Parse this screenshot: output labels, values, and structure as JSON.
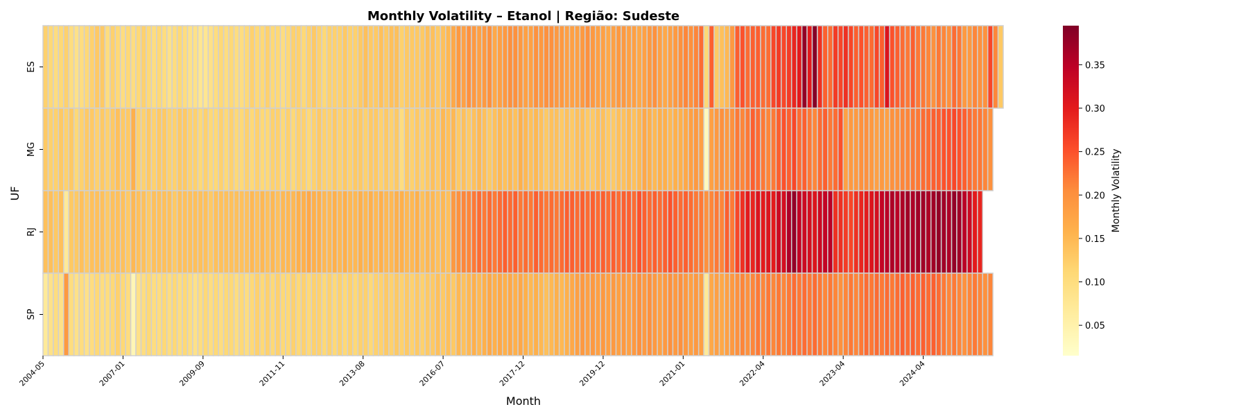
{
  "chart_data": {
    "type": "heatmap",
    "title": "Monthly Volatility – Etanol | Região: Sudeste",
    "xlabel": "Month",
    "ylabel": "UF",
    "rows": [
      "ES",
      "MG",
      "RJ",
      "SP"
    ],
    "x_tick_labels": [
      "2004-05",
      "2007-01",
      "2009-09",
      "2011-11",
      "2013-08",
      "2016-07",
      "2017-12",
      "2019-12",
      "2021-01",
      "2022-04",
      "2023-04",
      "2024-04"
    ],
    "colorbar": {
      "label": "Monthly Volatility",
      "ticks": [
        "0.05",
        "0.10",
        "0.15",
        "0.20",
        "0.25",
        "0.30",
        "0.35"
      ],
      "tick_values": [
        0.05,
        0.1,
        0.15,
        0.2,
        0.25,
        0.3,
        0.35
      ],
      "min": 0.015,
      "max": 0.395,
      "colormap": "YlOrRd"
    },
    "series": [
      {
        "name": "ES",
        "values": [
          0.12,
          0.11,
          0.1,
          0.11,
          0.12,
          0.1,
          0.09,
          0.1,
          0.11,
          0.12,
          0.13,
          0.13,
          0.1,
          0.12,
          0.11,
          0.1,
          0.11,
          0.1,
          0.11,
          0.12,
          0.11,
          0.1,
          0.11,
          0.1,
          0.09,
          0.1,
          0.11,
          0.1,
          0.09,
          0.09,
          0.08,
          0.08,
          0.09,
          0.1,
          0.11,
          0.1,
          0.11,
          0.1,
          0.1,
          0.11,
          0.12,
          0.11,
          0.11,
          0.12,
          0.11,
          0.11,
          0.1,
          0.11,
          0.12,
          0.12,
          0.11,
          0.12,
          0.13,
          0.12,
          0.11,
          0.12,
          0.12,
          0.12,
          0.13,
          0.12,
          0.12,
          0.13,
          0.14,
          0.13,
          0.13,
          0.14,
          0.13,
          0.14,
          0.14,
          0.12,
          0.13,
          0.13,
          0.13,
          0.13,
          0.14,
          0.14,
          0.13,
          0.14,
          0.15,
          0.17,
          0.19,
          0.18,
          0.2,
          0.19,
          0.18,
          0.19,
          0.2,
          0.17,
          0.18,
          0.19,
          0.2,
          0.2,
          0.19,
          0.18,
          0.18,
          0.2,
          0.19,
          0.2,
          0.2,
          0.19,
          0.19,
          0.18,
          0.18,
          0.18,
          0.19,
          0.2,
          0.19,
          0.18,
          0.18,
          0.17,
          0.18,
          0.19,
          0.19,
          0.18,
          0.18,
          0.17,
          0.18,
          0.19,
          0.2,
          0.18,
          0.17,
          0.18,
          0.19,
          0.2,
          0.21,
          0.2,
          0.21,
          0.23,
          0.11,
          0.24,
          0.13,
          0.14,
          0.15,
          0.19,
          0.24,
          0.25,
          0.23,
          0.24,
          0.24,
          0.23,
          0.23,
          0.26,
          0.27,
          0.26,
          0.27,
          0.29,
          0.3,
          0.38,
          0.3,
          0.39,
          0.28,
          0.24,
          0.23,
          0.27,
          0.26,
          0.28,
          0.26,
          0.24,
          0.25,
          0.24,
          0.23,
          0.26,
          0.24,
          0.31,
          0.25,
          0.24,
          0.23,
          0.22,
          0.24,
          0.22,
          0.22,
          0.21,
          0.2,
          0.22,
          0.21,
          0.2,
          0.23,
          0.22,
          0.19,
          0.19,
          0.21,
          0.2,
          0.2,
          0.26,
          0.21,
          0.13
        ]
      },
      {
        "name": "MG",
        "values": [
          0.13,
          0.12,
          0.12,
          0.13,
          0.12,
          0.13,
          0.11,
          0.12,
          0.13,
          0.13,
          0.12,
          0.13,
          0.12,
          0.13,
          0.14,
          0.13,
          0.13,
          0.16,
          0.12,
          0.12,
          0.13,
          0.12,
          0.13,
          0.13,
          0.12,
          0.12,
          0.13,
          0.13,
          0.12,
          0.12,
          0.11,
          0.12,
          0.11,
          0.11,
          0.12,
          0.11,
          0.12,
          0.11,
          0.11,
          0.12,
          0.11,
          0.12,
          0.11,
          0.11,
          0.12,
          0.12,
          0.11,
          0.12,
          0.11,
          0.12,
          0.12,
          0.11,
          0.12,
          0.13,
          0.12,
          0.12,
          0.13,
          0.12,
          0.13,
          0.12,
          0.13,
          0.13,
          0.12,
          0.13,
          0.13,
          0.12,
          0.13,
          0.12,
          0.13,
          0.1,
          0.13,
          0.12,
          0.13,
          0.12,
          0.13,
          0.14,
          0.13,
          0.15,
          0.14,
          0.15,
          0.13,
          0.14,
          0.13,
          0.14,
          0.15,
          0.14,
          0.13,
          0.14,
          0.15,
          0.14,
          0.15,
          0.14,
          0.16,
          0.15,
          0.14,
          0.15,
          0.14,
          0.13,
          0.14,
          0.14,
          0.13,
          0.14,
          0.13,
          0.14,
          0.14,
          0.13,
          0.13,
          0.14,
          0.14,
          0.13,
          0.13,
          0.14,
          0.14,
          0.15,
          0.14,
          0.15,
          0.17,
          0.16,
          0.15,
          0.16,
          0.16,
          0.15,
          0.16,
          0.16,
          0.17,
          0.18,
          0.19,
          0.18,
          0.03,
          0.18,
          0.19,
          0.2,
          0.19,
          0.2,
          0.22,
          0.21,
          0.22,
          0.24,
          0.23,
          0.22,
          0.21,
          0.22,
          0.24,
          0.25,
          0.24,
          0.26,
          0.23,
          0.24,
          0.22,
          0.21,
          0.23,
          0.24,
          0.22,
          0.23,
          0.25,
          0.18,
          0.19,
          0.19,
          0.2,
          0.2,
          0.19,
          0.18,
          0.19,
          0.18,
          0.2,
          0.2,
          0.21,
          0.21,
          0.22,
          0.22,
          0.23,
          0.23,
          0.24,
          0.24,
          0.25,
          0.25,
          0.26,
          0.25,
          0.24,
          0.23,
          0.22,
          0.22,
          0.21,
          0.2
        ]
      },
      {
        "name": "RJ",
        "values": [
          0.14,
          0.14,
          0.13,
          0.14,
          0.07,
          0.13,
          0.13,
          0.14,
          0.13,
          0.14,
          0.14,
          0.14,
          0.13,
          0.14,
          0.14,
          0.14,
          0.13,
          0.15,
          0.14,
          0.14,
          0.13,
          0.14,
          0.14,
          0.14,
          0.14,
          0.13,
          0.14,
          0.14,
          0.14,
          0.14,
          0.14,
          0.14,
          0.13,
          0.14,
          0.14,
          0.14,
          0.14,
          0.14,
          0.14,
          0.14,
          0.15,
          0.14,
          0.15,
          0.14,
          0.15,
          0.14,
          0.15,
          0.15,
          0.15,
          0.16,
          0.16,
          0.17,
          0.16,
          0.16,
          0.15,
          0.15,
          0.16,
          0.15,
          0.16,
          0.15,
          0.15,
          0.16,
          0.15,
          0.16,
          0.15,
          0.16,
          0.15,
          0.15,
          0.16,
          0.16,
          0.15,
          0.15,
          0.16,
          0.14,
          0.15,
          0.15,
          0.14,
          0.15,
          0.14,
          0.19,
          0.2,
          0.21,
          0.21,
          0.22,
          0.23,
          0.22,
          0.23,
          0.22,
          0.23,
          0.24,
          0.23,
          0.24,
          0.22,
          0.23,
          0.22,
          0.24,
          0.23,
          0.22,
          0.23,
          0.22,
          0.23,
          0.24,
          0.24,
          0.23,
          0.24,
          0.23,
          0.24,
          0.23,
          0.24,
          0.23,
          0.24,
          0.23,
          0.24,
          0.24,
          0.23,
          0.25,
          0.24,
          0.23,
          0.24,
          0.23,
          0.24,
          0.25,
          0.24,
          0.23,
          0.24,
          0.23,
          0.22,
          0.22,
          0.2,
          0.21,
          0.22,
          0.21,
          0.24,
          0.22,
          0.26,
          0.28,
          0.3,
          0.29,
          0.31,
          0.3,
          0.31,
          0.3,
          0.33,
          0.32,
          0.36,
          0.38,
          0.34,
          0.33,
          0.32,
          0.31,
          0.33,
          0.34,
          0.35,
          0.28,
          0.28,
          0.27,
          0.26,
          0.28,
          0.29,
          0.3,
          0.31,
          0.32,
          0.34,
          0.35,
          0.36,
          0.35,
          0.36,
          0.37,
          0.36,
          0.37,
          0.37,
          0.36,
          0.37,
          0.38,
          0.37,
          0.36,
          0.38,
          0.37,
          0.35,
          0.33,
          0.3,
          0.29
        ]
      },
      {
        "name": "SP",
        "values": [
          0.07,
          0.09,
          0.1,
          0.09,
          0.19,
          0.1,
          0.09,
          0.1,
          0.09,
          0.1,
          0.11,
          0.1,
          0.1,
          0.11,
          0.12,
          0.11,
          0.1,
          0.04,
          0.09,
          0.1,
          0.11,
          0.1,
          0.1,
          0.11,
          0.1,
          0.11,
          0.1,
          0.11,
          0.1,
          0.09,
          0.1,
          0.11,
          0.1,
          0.11,
          0.1,
          0.11,
          0.11,
          0.1,
          0.11,
          0.1,
          0.11,
          0.12,
          0.11,
          0.12,
          0.11,
          0.12,
          0.11,
          0.11,
          0.12,
          0.11,
          0.12,
          0.11,
          0.12,
          0.12,
          0.11,
          0.12,
          0.11,
          0.12,
          0.11,
          0.12,
          0.11,
          0.12,
          0.12,
          0.11,
          0.12,
          0.12,
          0.13,
          0.12,
          0.13,
          0.12,
          0.13,
          0.12,
          0.13,
          0.12,
          0.13,
          0.13,
          0.14,
          0.13,
          0.14,
          0.13,
          0.15,
          0.14,
          0.15,
          0.16,
          0.15,
          0.16,
          0.17,
          0.16,
          0.17,
          0.16,
          0.17,
          0.16,
          0.17,
          0.16,
          0.15,
          0.16,
          0.15,
          0.14,
          0.15,
          0.16,
          0.15,
          0.16,
          0.17,
          0.18,
          0.19,
          0.18,
          0.19,
          0.18,
          0.19,
          0.18,
          0.19,
          0.18,
          0.19,
          0.18,
          0.19,
          0.2,
          0.19,
          0.2,
          0.19,
          0.18,
          0.19,
          0.2,
          0.19,
          0.2,
          0.19,
          0.18,
          0.19,
          0.18,
          0.07,
          0.17,
          0.18,
          0.17,
          0.18,
          0.19,
          0.2,
          0.21,
          0.2,
          0.21,
          0.22,
          0.21,
          0.22,
          0.21,
          0.22,
          0.21,
          0.22,
          0.23,
          0.22,
          0.23,
          0.22,
          0.23,
          0.22,
          0.21,
          0.22,
          0.21,
          0.2,
          0.21,
          0.22,
          0.21,
          0.22,
          0.23,
          0.22,
          0.23,
          0.22,
          0.23,
          0.22,
          0.23,
          0.24,
          0.23,
          0.24,
          0.23,
          0.24,
          0.23,
          0.24,
          0.23,
          0.22,
          0.21,
          0.22,
          0.21,
          0.2,
          0.21,
          0.22,
          0.21,
          0.2,
          0.21
        ]
      }
    ]
  }
}
